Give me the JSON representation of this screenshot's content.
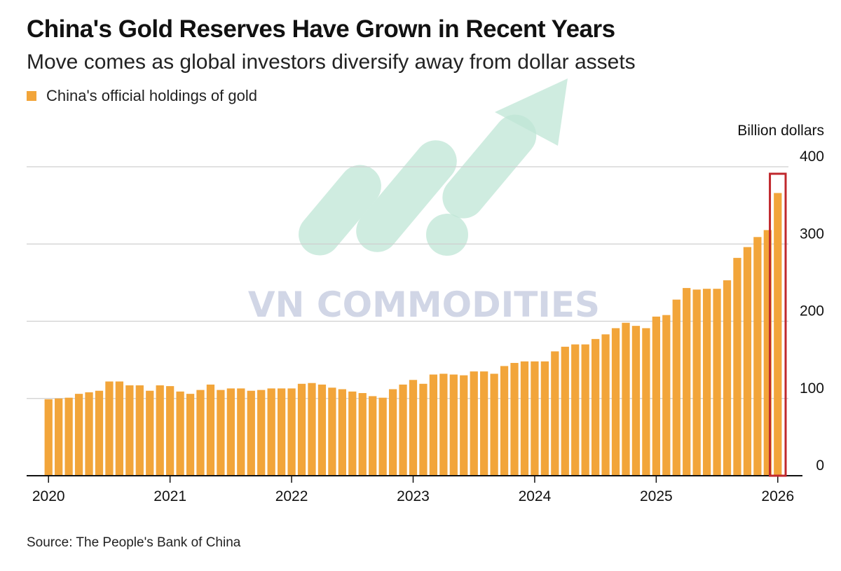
{
  "title": "China's Gold Reserves Have Grown in Recent Years",
  "subtitle": "Move comes as global investors diversify away from dollar assets",
  "legend": {
    "label": "China's official holdings of gold"
  },
  "source": "Source: The People's Bank of China",
  "watermark": "VN COMMODITIES",
  "colors": {
    "bar": "#f2a53a",
    "grid": "#cfcfcf",
    "axis": "#111111",
    "highlight": "#c0282d",
    "watermark_arrow": "#bfe6d6"
  },
  "chart_data": {
    "type": "bar",
    "unit_label": "Billion dollars",
    "ylim": [
      0,
      400
    ],
    "yticks": [
      0,
      100,
      200,
      300,
      400
    ],
    "x_tick_labels": [
      "2020",
      "2021",
      "2022",
      "2023",
      "2024",
      "2025",
      "2026"
    ],
    "grid": true,
    "legend_position": "top-left",
    "highlighted": "last bar",
    "categories": [
      "2020-01",
      "2020-02",
      "2020-03",
      "2020-04",
      "2020-05",
      "2020-06",
      "2020-07",
      "2020-08",
      "2020-09",
      "2020-10",
      "2020-11",
      "2020-12",
      "2021-01",
      "2021-02",
      "2021-03",
      "2021-04",
      "2021-05",
      "2021-06",
      "2021-07",
      "2021-08",
      "2021-09",
      "2021-10",
      "2021-11",
      "2021-12",
      "2022-01",
      "2022-02",
      "2022-03",
      "2022-04",
      "2022-05",
      "2022-06",
      "2022-07",
      "2022-08",
      "2022-09",
      "2022-10",
      "2022-11",
      "2022-12",
      "2023-01",
      "2023-02",
      "2023-03",
      "2023-04",
      "2023-05",
      "2023-06",
      "2023-07",
      "2023-08",
      "2023-09",
      "2023-10",
      "2023-11",
      "2023-12",
      "2024-01",
      "2024-02",
      "2024-03",
      "2024-04",
      "2024-05",
      "2024-06",
      "2024-07",
      "2024-08",
      "2024-09",
      "2024-10",
      "2024-11",
      "2024-12",
      "2025-01",
      "2025-02",
      "2025-03",
      "2025-04",
      "2025-05",
      "2025-06",
      "2025-07",
      "2025-08",
      "2025-09",
      "2025-10",
      "2025-11",
      "2025-12",
      "2026-01"
    ],
    "values": [
      99,
      100,
      101,
      106,
      108,
      110,
      122,
      122,
      117,
      117,
      110,
      117,
      116,
      109,
      106,
      111,
      118,
      111,
      113,
      113,
      110,
      111,
      113,
      113,
      113,
      119,
      120,
      118,
      114,
      112,
      109,
      107,
      103,
      101,
      112,
      118,
      124,
      119,
      131,
      132,
      131,
      130,
      135,
      135,
      132,
      142,
      146,
      148,
      148,
      148,
      161,
      167,
      170,
      170,
      177,
      183,
      191,
      198,
      194,
      191,
      206,
      208,
      228,
      243,
      241,
      242,
      242,
      253,
      282,
      296,
      309,
      318,
      366
    ]
  }
}
